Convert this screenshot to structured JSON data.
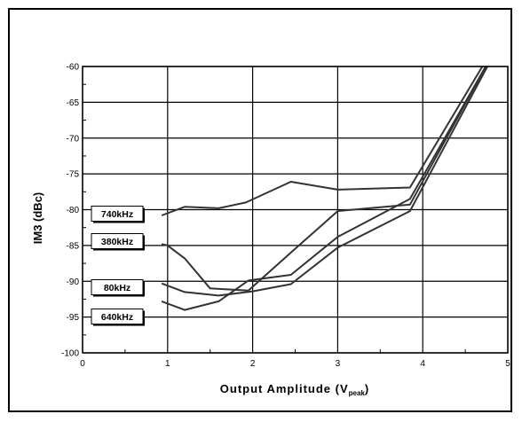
{
  "chart_data": {
    "type": "line",
    "title": "",
    "xlabel": "Output Amplitude (V",
    "xlabel_sub": "peak",
    "xlabel_end": ")",
    "ylabel": "IM3 (dBc)",
    "xlim": [
      0,
      5
    ],
    "ylim": [
      -100,
      -60
    ],
    "xticks": [
      "0",
      "1",
      "2",
      "3",
      "4",
      "5"
    ],
    "yticks": [
      "-60",
      "-65",
      "-70",
      "-75",
      "-80",
      "-85",
      "-90",
      "-95",
      "-100"
    ],
    "grid": true,
    "series": [
      {
        "name": "740kHz",
        "points": [
          [
            0.93,
            -80.8
          ],
          [
            1.2,
            -79.6
          ],
          [
            1.6,
            -79.8
          ],
          [
            1.92,
            -79
          ],
          [
            2.45,
            -76.1
          ],
          [
            3.0,
            -77.2
          ],
          [
            3.85,
            -76.9
          ],
          [
            4.7,
            -60
          ]
        ]
      },
      {
        "name": "380kHz",
        "points": [
          [
            0.93,
            -84.8
          ],
          [
            1.0,
            -85
          ],
          [
            1.2,
            -86.8
          ],
          [
            1.5,
            -91
          ],
          [
            1.95,
            -91.3
          ],
          [
            2.45,
            -86
          ],
          [
            3.0,
            -80.2
          ],
          [
            3.85,
            -79.3
          ],
          [
            4.74,
            -60
          ]
        ]
      },
      {
        "name": "80kHz",
        "points": [
          [
            0.93,
            -90.3
          ],
          [
            1.2,
            -91.5
          ],
          [
            1.6,
            -92
          ],
          [
            2.0,
            -91.4
          ],
          [
            2.45,
            -90.4
          ],
          [
            3.0,
            -85.3
          ],
          [
            3.85,
            -80.2
          ],
          [
            4.76,
            -60
          ]
        ]
      },
      {
        "name": "640kHz",
        "points": [
          [
            0.93,
            -92.8
          ],
          [
            1.2,
            -94
          ],
          [
            1.6,
            -92.8
          ],
          [
            1.95,
            -89.9
          ],
          [
            2.45,
            -89.1
          ],
          [
            3.0,
            -83.8
          ],
          [
            3.85,
            -78.5
          ],
          [
            4.74,
            -60
          ]
        ]
      }
    ],
    "callouts": [
      {
        "series": "740kHz",
        "label": "740kHz"
      },
      {
        "series": "380kHz",
        "label": "380kHz"
      },
      {
        "series": "80kHz",
        "label": "80kHz"
      },
      {
        "series": "640kHz",
        "label": "640kHz"
      }
    ]
  }
}
